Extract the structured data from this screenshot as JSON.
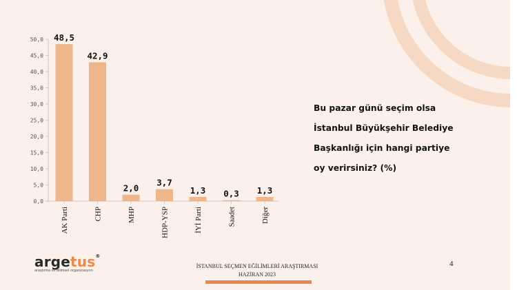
{
  "question_lines": [
    "Bu pazar günü seçim olsa",
    "İstanbul Büyükşehir Belediye",
    "Başkanlığı için hangi partiye",
    "oy verirsiniz? (%)"
  ],
  "footer": {
    "survey_title": "İSTANBUL SEÇMEN EĞİLİMLERİ ARAŞTIRMASI",
    "date": "HAZİRAN 2023",
    "page_number": "4"
  },
  "logo": {
    "text_main": "arge",
    "text_accent": "tus",
    "registered": "®",
    "tagline": "araştırma ve bilimsel organizasyon"
  },
  "colors": {
    "bar": "#efb68c",
    "accent": "#e9884a",
    "background": "#fbf0ea",
    "axis": "#cfc9c4"
  },
  "chart_data": {
    "type": "bar",
    "categories": [
      "AK Parti",
      "CHP",
      "MHP",
      "HDP-YSP",
      "İYİ Parti",
      "Saadet",
      "Diğer"
    ],
    "values": [
      48.5,
      42.9,
      2.0,
      3.7,
      1.3,
      0.3,
      1.3
    ],
    "value_labels": [
      "48,5",
      "42,9",
      "2,0",
      "3,7",
      "1,3",
      "0,3",
      "1,3"
    ],
    "yticks": [
      0,
      5,
      10,
      15,
      20,
      25,
      30,
      35,
      40,
      45,
      50
    ],
    "ytick_labels": [
      "0,0",
      "5,0",
      "10,0",
      "15,0",
      "20,0",
      "25,0",
      "30,0",
      "35,0",
      "40,0",
      "45,0",
      "50,0"
    ],
    "ylim": [
      0,
      50
    ],
    "grid": false,
    "legend": "none"
  }
}
